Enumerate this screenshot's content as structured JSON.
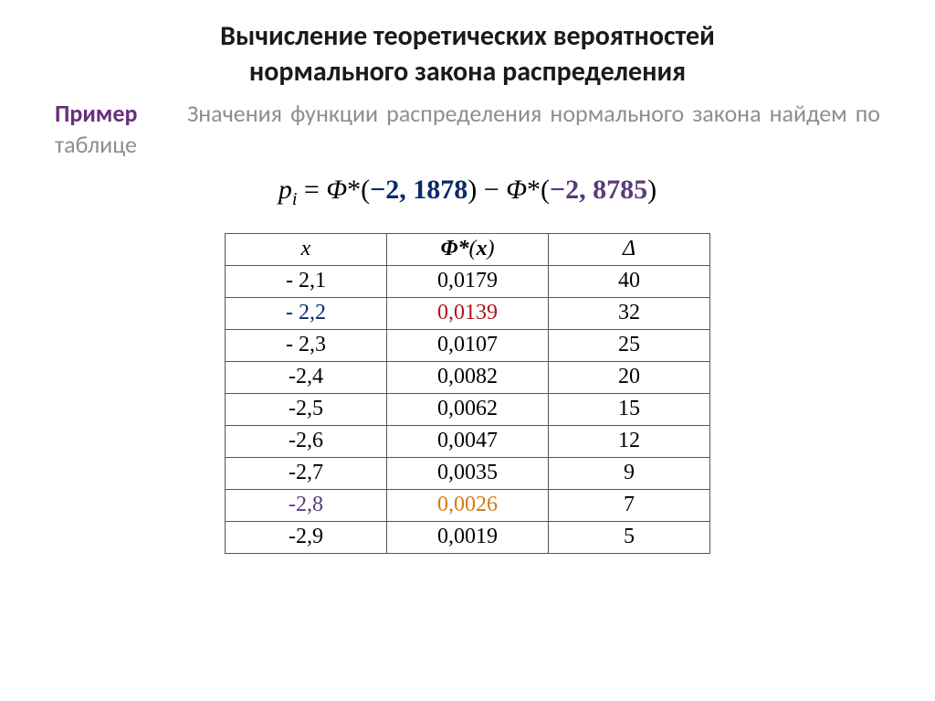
{
  "title_line1": "Вычисление теоретических вероятностей",
  "title_line2": "нормального закона распределения",
  "example_label": "Пример",
  "paragraph_rest": "Значения функции распределения нормального закона найдем по таблице",
  "formula": {
    "pi": "p",
    "sub": "i",
    "eq": " = ",
    "phi": "Φ",
    "star": "*",
    "open": "(",
    "minus": "−",
    "val1": "2, 1878",
    "close": ")",
    "minus_mid": " − ",
    "val2": "2, 8785",
    "colors": {
      "val1": "#0b2a6b",
      "val2": "#5a3a7a"
    }
  },
  "table": {
    "columns": [
      "x",
      "Φ*(x)",
      "Δ"
    ],
    "rows": [
      {
        "x": "- 2,1",
        "phi": "0,0179",
        "d": "40",
        "x_style": "",
        "phi_style": "",
        "d_style": ""
      },
      {
        "x": "- 2,2",
        "phi": "0,0139",
        "d": "32",
        "x_style": "bold c-blue",
        "phi_style": "bold c-red",
        "d_style": ""
      },
      {
        "x": "- 2,3",
        "phi": "0,0107",
        "d": "25",
        "x_style": "",
        "phi_style": "",
        "d_style": ""
      },
      {
        "x": "-2,4",
        "phi": "0,0082",
        "d": "20",
        "x_style": "",
        "phi_style": "",
        "d_style": ""
      },
      {
        "x": "-2,5",
        "phi": "0,0062",
        "d": "15",
        "x_style": "",
        "phi_style": "",
        "d_style": ""
      },
      {
        "x": "-2,6",
        "phi": "0,0047",
        "d": "12",
        "x_style": "",
        "phi_style": "",
        "d_style": ""
      },
      {
        "x": "-2,7",
        "phi": "0,0035",
        "d": "9",
        "x_style": "",
        "phi_style": "",
        "d_style": ""
      },
      {
        "x": "-2,8",
        "phi": "0,0026",
        "d": "7",
        "x_style": "bold c-purple",
        "phi_style": "bold c-orange",
        "d_style": ""
      },
      {
        "x": "-2,9",
        "phi": "0,0019",
        "d": "5",
        "x_style": "",
        "phi_style": "",
        "d_style": ""
      }
    ],
    "border_color": "#555555",
    "header_fontstyle": "italic"
  }
}
